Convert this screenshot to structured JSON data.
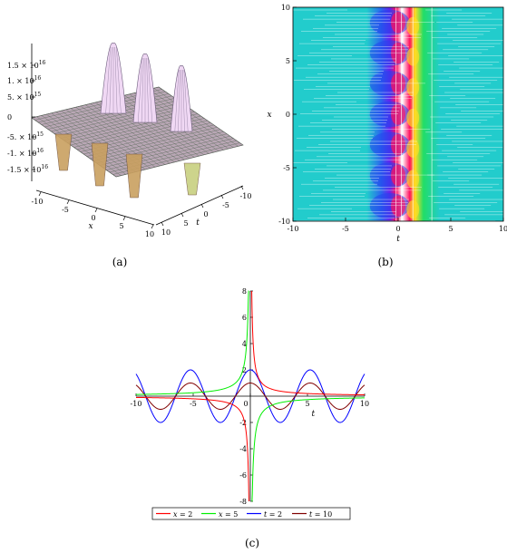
{
  "captions": {
    "a": "(a)",
    "b": "(b)",
    "c": "(c)"
  },
  "chart_data": [
    {
      "panel": "a",
      "type": "surface",
      "xlabel": "x",
      "ylabel": "t",
      "z_ticks": [
        "1.5 × 10",
        "1. × 10",
        "5. × 10",
        "0",
        "-5. × 10",
        "-1. × 10",
        "-1.5 × 10"
      ],
      "z_tick_exponents": [
        "16",
        "16",
        "15",
        "",
        "15",
        "16",
        "16"
      ],
      "x_ticks": [
        "-10",
        "-5",
        "0",
        "5",
        "10"
      ],
      "t_ticks": [
        "10",
        "5",
        "0",
        "-5",
        "-10"
      ],
      "colors": {
        "peak": "#f0d8f4",
        "grid": "#5a6a5a",
        "trough": "#c9a060"
      }
    },
    {
      "panel": "b",
      "type": "heatmap",
      "xlabel": "t",
      "ylabel": "x",
      "xlim": [
        -10,
        10
      ],
      "ylim": [
        -10,
        10
      ],
      "x_ticks": [
        "-10",
        "-5",
        "0",
        "5",
        "10"
      ],
      "y_ticks": [
        "10",
        "5",
        "0",
        "-5",
        "-10"
      ],
      "colors": {
        "low": "#22cccc",
        "mid": "#2244ee",
        "high": "#ff1060",
        "alt": "#ffdd22"
      }
    },
    {
      "panel": "c",
      "type": "line",
      "xlabel": "t",
      "xlim": [
        -10,
        10
      ],
      "ylim": [
        -8,
        8
      ],
      "x_ticks": [
        "-10",
        "-5",
        "0",
        "5",
        "10"
      ],
      "y_ticks": [
        "8",
        "6",
        "4",
        "2",
        "-2",
        "-4",
        "-6",
        "-8"
      ],
      "legend_position": "bottom",
      "series": [
        {
          "name_var": "x",
          "name_eq": " = 2",
          "color": "#ff0000"
        },
        {
          "name_var": "x",
          "name_eq": " = 5",
          "color": "#00ee00"
        },
        {
          "name_var": "t",
          "name_eq": " = 2",
          "color": "#0000ff"
        },
        {
          "name_var": "t",
          "name_eq": " = 10",
          "color": "#800000"
        }
      ]
    }
  ]
}
